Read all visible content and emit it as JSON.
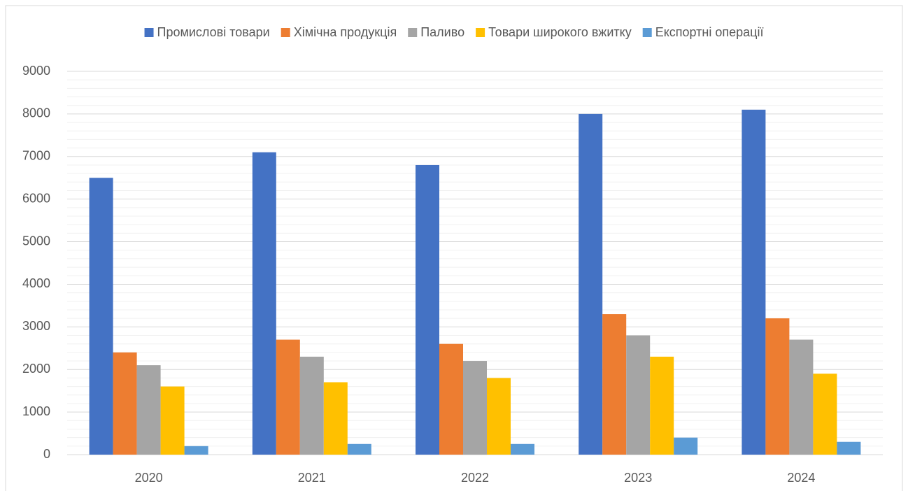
{
  "chart_data": {
    "type": "bar",
    "categories": [
      "2020",
      "2021",
      "2022",
      "2023",
      "2024"
    ],
    "series": [
      {
        "name": "Промислові товари",
        "color": "#4472c4",
        "values": [
          6500,
          7100,
          6800,
          8000,
          8100
        ]
      },
      {
        "name": "Хімічна продукція",
        "color": "#ed7d31",
        "values": [
          2400,
          2700,
          2600,
          3300,
          3200
        ]
      },
      {
        "name": "Паливо",
        "color": "#a5a5a5",
        "values": [
          2100,
          2300,
          2200,
          2800,
          2700
        ]
      },
      {
        "name": "Товари широкого вжитку",
        "color": "#ffc000",
        "values": [
          1600,
          1700,
          1800,
          2300,
          1900
        ]
      },
      {
        "name": "Експортні операції",
        "color": "#5b9bd5",
        "values": [
          200,
          250,
          250,
          400,
          300
        ]
      }
    ],
    "ylim": [
      0,
      9000
    ],
    "yticks": [
      0,
      1000,
      2000,
      3000,
      4000,
      5000,
      6000,
      7000,
      8000,
      9000
    ],
    "minor_yticks": [
      200,
      400,
      600,
      800,
      1200,
      1400,
      1600,
      1800,
      2200,
      2400,
      2600,
      2800,
      3200,
      3400,
      3600,
      3800,
      4200,
      4400,
      4600,
      4800,
      5200,
      5400,
      5600,
      5800,
      6200,
      6400,
      6600,
      6800,
      7200,
      7400,
      7600,
      7800,
      8200,
      8400,
      8600,
      8800
    ],
    "grid": true,
    "minor_grid": true,
    "legend": "top"
  }
}
